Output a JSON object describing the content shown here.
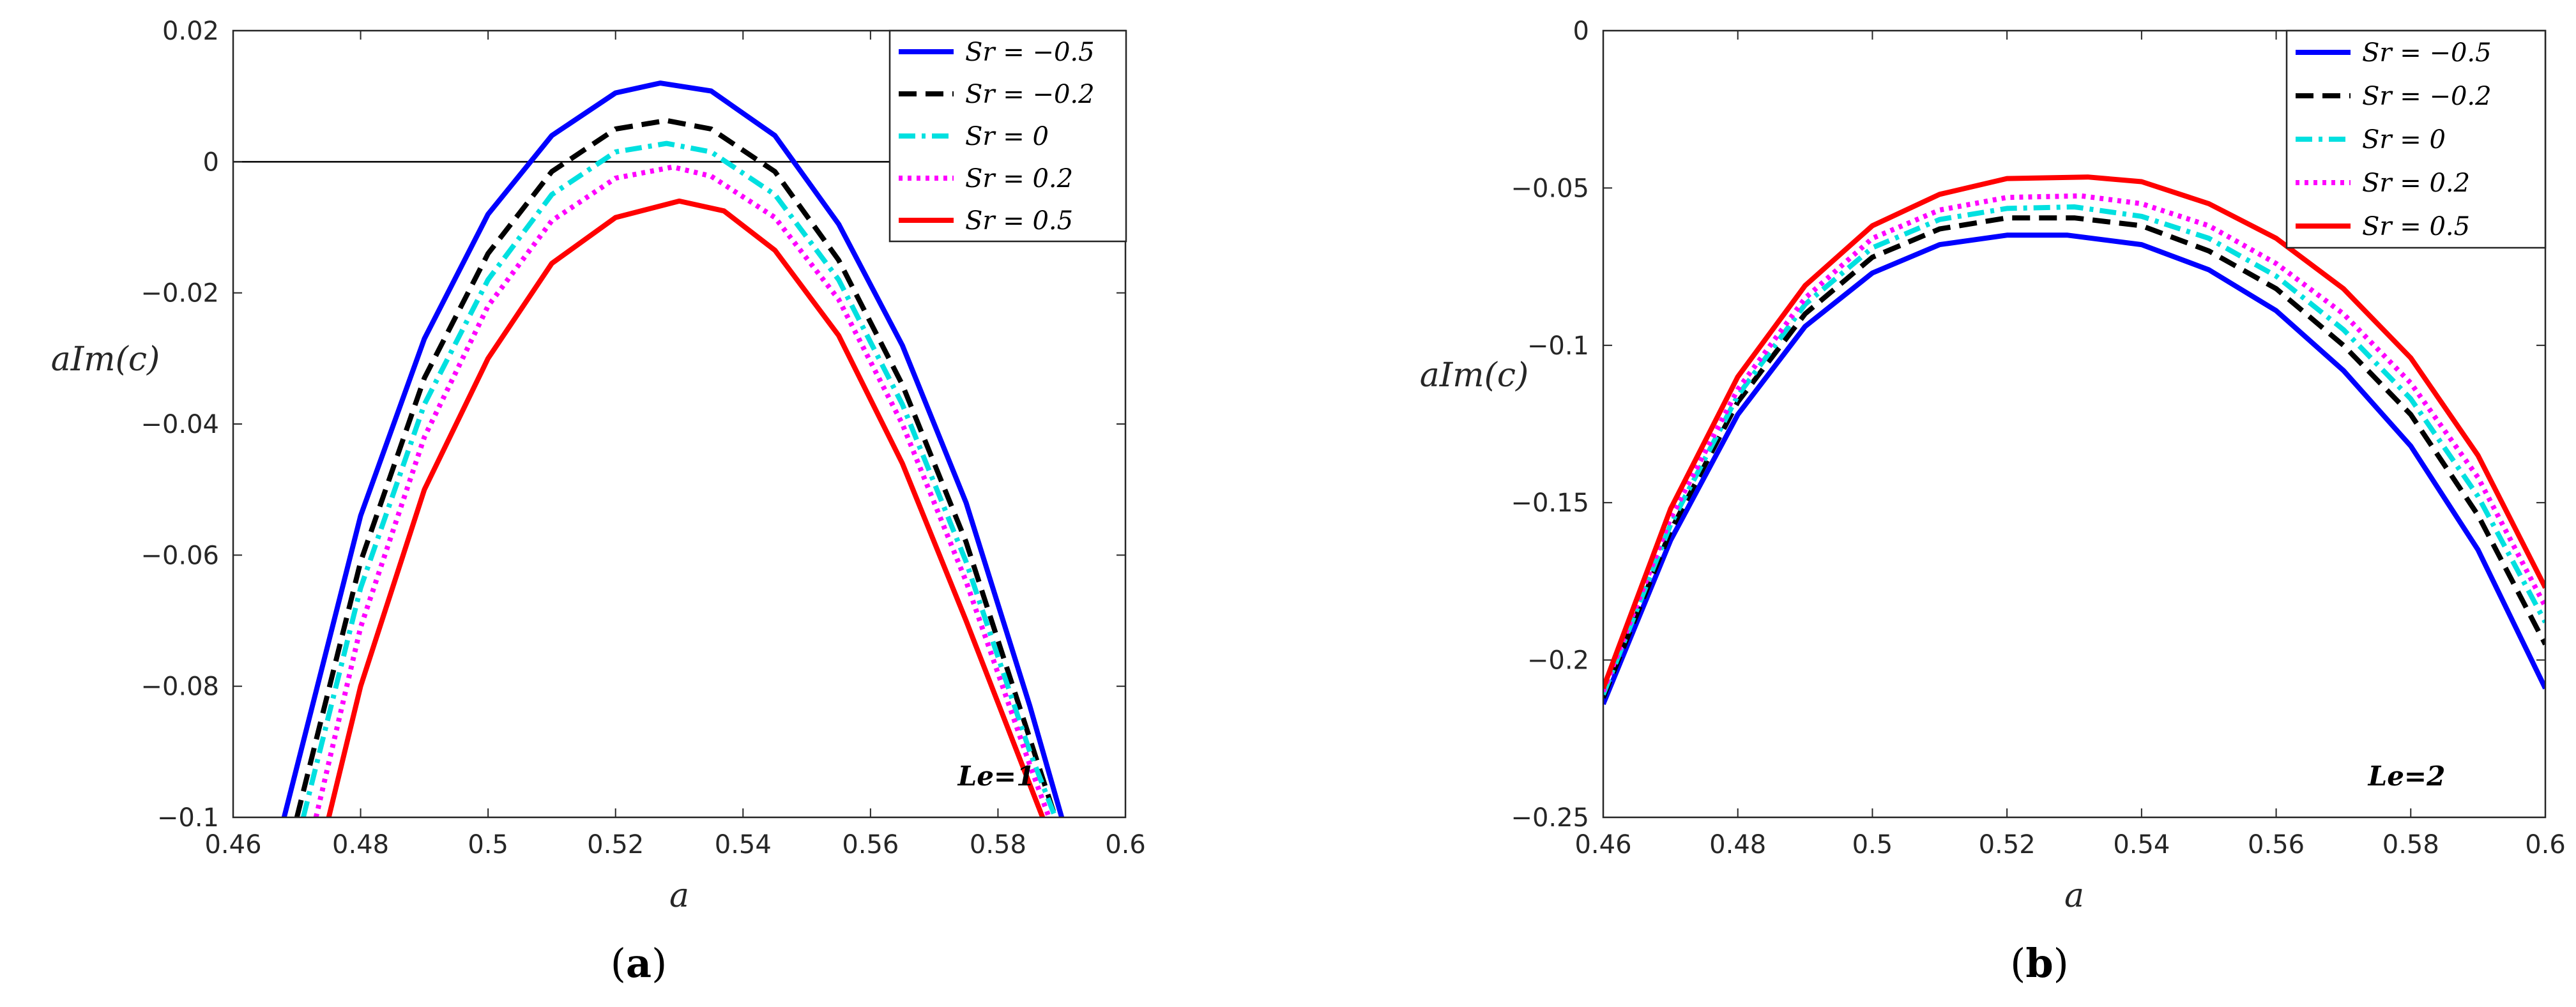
{
  "figure": {
    "panel_a_caption": {
      "open": "(",
      "letter": "a",
      "close": ")"
    },
    "panel_b_caption": {
      "open": "(",
      "letter": "b",
      "close": ")"
    }
  },
  "chart_data": [
    {
      "type": "line",
      "panel": "a",
      "annotation": "Le=1",
      "xlabel": "a",
      "ylabel": "aIm(c)",
      "xlim": [
        0.46,
        0.6
      ],
      "ylim": [
        -0.1,
        0.02
      ],
      "xticks": [
        0.46,
        0.48,
        0.5,
        0.52,
        0.54,
        0.56,
        0.58,
        0.6
      ],
      "xtick_labels": [
        "0.46",
        "0.48",
        "0.5",
        "0.52",
        "0.54",
        "0.56",
        "0.58",
        "0.6"
      ],
      "yticks": [
        -0.1,
        -0.08,
        -0.06,
        -0.04,
        -0.02,
        0,
        0.02
      ],
      "ytick_labels": [
        "−0.1",
        "−0.08",
        "−0.06",
        "−0.04",
        "−0.02",
        "0",
        "0.02"
      ],
      "zero_line": true,
      "legend_position": "top-right",
      "series": [
        {
          "name": "S_r = −0.5",
          "label": "Sr = −0.5",
          "color": "#0000ff",
          "dash": "solid",
          "x": [
            0.468,
            0.48,
            0.49,
            0.5,
            0.51,
            0.52,
            0.527,
            0.535,
            0.545,
            0.555,
            0.565,
            0.575,
            0.585,
            0.59
          ],
          "y": [
            -0.1,
            -0.054,
            -0.027,
            -0.008,
            0.004,
            0.0105,
            0.012,
            0.0108,
            0.004,
            -0.0095,
            -0.028,
            -0.052,
            -0.083,
            -0.1
          ]
        },
        {
          "name": "S_r = −0.2",
          "label": "Sr = −0.2",
          "color": "#000000",
          "dash": "dash",
          "x": [
            0.47,
            0.48,
            0.49,
            0.5,
            0.51,
            0.52,
            0.528,
            0.535,
            0.545,
            0.555,
            0.565,
            0.575,
            0.585,
            0.589
          ],
          "y": [
            -0.1,
            -0.061,
            -0.033,
            -0.014,
            -0.0015,
            0.005,
            0.0063,
            0.005,
            -0.0015,
            -0.015,
            -0.034,
            -0.058,
            -0.088,
            -0.1
          ]
        },
        {
          "name": "S_r = 0",
          "label": "Sr = 0",
          "color": "#00e0e0",
          "dash": "dashdot",
          "x": [
            0.471,
            0.48,
            0.49,
            0.5,
            0.51,
            0.52,
            0.528,
            0.535,
            0.545,
            0.555,
            0.565,
            0.575,
            0.585,
            0.589
          ],
          "y": [
            -0.1,
            -0.065,
            -0.037,
            -0.018,
            -0.005,
            0.0015,
            0.0028,
            0.0015,
            -0.005,
            -0.018,
            -0.037,
            -0.061,
            -0.09,
            -0.1
          ]
        },
        {
          "name": "S_r = 0.2",
          "label": "Sr = 0.2",
          "color": "#ff00ff",
          "dash": "dot",
          "x": [
            0.473,
            0.48,
            0.49,
            0.5,
            0.51,
            0.52,
            0.529,
            0.535,
            0.545,
            0.555,
            0.565,
            0.575,
            0.585,
            0.588
          ],
          "y": [
            -0.1,
            -0.071,
            -0.042,
            -0.022,
            -0.009,
            -0.0025,
            -0.0008,
            -0.0022,
            -0.0085,
            -0.021,
            -0.04,
            -0.064,
            -0.092,
            -0.1
          ]
        },
        {
          "name": "S_r = 0.5",
          "label": "Sr = 0.5",
          "color": "#ff0000",
          "dash": "solid",
          "x": [
            0.475,
            0.48,
            0.49,
            0.5,
            0.51,
            0.52,
            0.53,
            0.537,
            0.545,
            0.555,
            0.565,
            0.575,
            0.585,
            0.587
          ],
          "y": [
            -0.1,
            -0.08,
            -0.05,
            -0.03,
            -0.0155,
            -0.0085,
            -0.006,
            -0.0075,
            -0.0135,
            -0.0265,
            -0.046,
            -0.07,
            -0.095,
            -0.1
          ]
        }
      ]
    },
    {
      "type": "line",
      "panel": "b",
      "annotation": "Le=2",
      "xlabel": "a",
      "ylabel": "aIm(c)",
      "xlim": [
        0.46,
        0.6
      ],
      "ylim": [
        -0.25,
        0
      ],
      "xticks": [
        0.46,
        0.48,
        0.5,
        0.52,
        0.54,
        0.56,
        0.58,
        0.6
      ],
      "xtick_labels": [
        "0.46",
        "0.48",
        "0.5",
        "0.52",
        "0.54",
        "0.56",
        "0.58",
        "0.6"
      ],
      "yticks": [
        -0.25,
        -0.2,
        -0.15,
        -0.1,
        -0.05,
        0
      ],
      "ytick_labels": [
        "−0.25",
        "−0.2",
        "−0.15",
        "−0.1",
        "−0.05",
        "0"
      ],
      "zero_line": false,
      "legend_position": "top-right",
      "series": [
        {
          "name": "S_r = −0.5",
          "label": "Sr = −0.5",
          "color": "#0000ff",
          "dash": "solid",
          "x": [
            0.46,
            0.47,
            0.48,
            0.49,
            0.5,
            0.51,
            0.52,
            0.529,
            0.54,
            0.55,
            0.56,
            0.57,
            0.58,
            0.59,
            0.6
          ],
          "y": [
            -0.214,
            -0.162,
            -0.122,
            -0.094,
            -0.077,
            -0.068,
            -0.065,
            -0.065,
            -0.068,
            -0.076,
            -0.089,
            -0.108,
            -0.132,
            -0.165,
            -0.209
          ]
        },
        {
          "name": "S_r = −0.2",
          "label": "Sr = −0.2",
          "color": "#000000",
          "dash": "dash",
          "x": [
            0.46,
            0.47,
            0.48,
            0.49,
            0.5,
            0.51,
            0.52,
            0.53,
            0.54,
            0.55,
            0.56,
            0.57,
            0.58,
            0.59,
            0.6
          ],
          "y": [
            -0.212,
            -0.159,
            -0.118,
            -0.09,
            -0.072,
            -0.063,
            -0.0595,
            -0.0595,
            -0.062,
            -0.07,
            -0.082,
            -0.1,
            -0.122,
            -0.154,
            -0.195
          ]
        },
        {
          "name": "S_r = 0",
          "label": "Sr = 0",
          "color": "#00e0e0",
          "dash": "dashdot",
          "x": [
            0.46,
            0.47,
            0.48,
            0.49,
            0.5,
            0.51,
            0.52,
            0.53,
            0.54,
            0.55,
            0.56,
            0.57,
            0.58,
            0.59,
            0.6
          ],
          "y": [
            -0.211,
            -0.157,
            -0.116,
            -0.087,
            -0.069,
            -0.06,
            -0.0565,
            -0.056,
            -0.059,
            -0.066,
            -0.078,
            -0.095,
            -0.117,
            -0.148,
            -0.188
          ]
        },
        {
          "name": "S_r = 0.2",
          "label": "Sr = 0.2",
          "color": "#ff00ff",
          "dash": "dot",
          "x": [
            0.46,
            0.47,
            0.48,
            0.49,
            0.5,
            0.51,
            0.52,
            0.531,
            0.54,
            0.55,
            0.56,
            0.57,
            0.58,
            0.59,
            0.6
          ],
          "y": [
            -0.21,
            -0.155,
            -0.114,
            -0.085,
            -0.066,
            -0.057,
            -0.053,
            -0.0525,
            -0.055,
            -0.062,
            -0.074,
            -0.09,
            -0.112,
            -0.142,
            -0.183
          ]
        },
        {
          "name": "S_r = 0.5",
          "label": "Sr = 0.5",
          "color": "#ff0000",
          "dash": "solid",
          "x": [
            0.46,
            0.47,
            0.48,
            0.49,
            0.5,
            0.51,
            0.52,
            0.532,
            0.54,
            0.55,
            0.56,
            0.57,
            0.58,
            0.59,
            0.6
          ],
          "y": [
            -0.209,
            -0.152,
            -0.11,
            -0.081,
            -0.062,
            -0.052,
            -0.047,
            -0.0465,
            -0.048,
            -0.055,
            -0.066,
            -0.082,
            -0.104,
            -0.135,
            -0.177
          ]
        }
      ]
    }
  ]
}
